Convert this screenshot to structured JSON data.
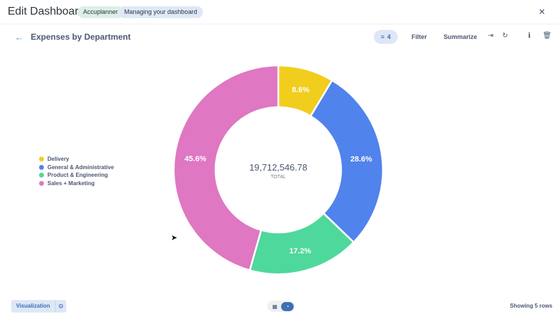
{
  "header": {
    "title": "Edit Dashboard",
    "pill_1": "Accuplanner",
    "pill_2": "Managing your dashboard",
    "close_icon": "close-icon"
  },
  "question": {
    "title": "Expenses by Department",
    "filter_count": "4",
    "filter_label": "Filter",
    "summarize_label": "Summarize"
  },
  "colors": {
    "delivery": "#f1cd1e",
    "general": "#5083ec",
    "product": "#4fd89b",
    "sales": "#df77c2"
  },
  "chart_data": {
    "type": "pie",
    "center_value": "19,712,546.78",
    "center_label": "TOTAL",
    "slices": [
      {
        "name": "Delivery",
        "percent": 8.6,
        "label": "8.6%"
      },
      {
        "name": "General & Administrative",
        "percent": 28.6,
        "label": "28.6%"
      },
      {
        "name": "Product & Engineering",
        "percent": 17.2,
        "label": "17.2%"
      },
      {
        "name": "Sales + Marketing",
        "percent": 45.6,
        "label": "45.6%"
      }
    ],
    "legend_position": "left"
  },
  "footer": {
    "visualization_label": "Visualization",
    "rows_text": "Showing 5 rows"
  }
}
